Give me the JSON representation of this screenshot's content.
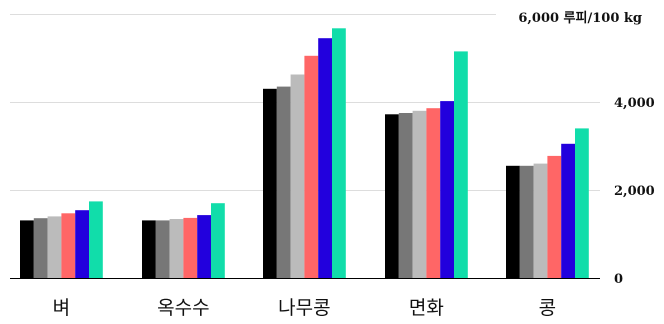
{
  "chart_data": {
    "type": "bar",
    "title": "",
    "xlabel": "",
    "ylabel": "",
    "unit_label": "6,000 루피/100 kg",
    "ylim": [
      0,
      6000
    ],
    "yticks": [
      {
        "value": 0,
        "label": "0"
      },
      {
        "value": 2000,
        "label": "2,000"
      },
      {
        "value": 4000,
        "label": "4,000"
      }
    ],
    "y_axis_side": "right",
    "grid": true,
    "legend": "none",
    "categories": [
      "벼",
      "옥수수",
      "나무콩",
      "면화",
      "콩"
    ],
    "series": [
      {
        "color": "#000000",
        "values": [
          1310,
          1310,
          4300,
          3720,
          2550
        ]
      },
      {
        "color": "#777777",
        "values": [
          1360,
          1310,
          4350,
          3750,
          2550
        ]
      },
      {
        "color": "#bbbbbb",
        "values": [
          1400,
          1340,
          4625,
          3800,
          2600
        ]
      },
      {
        "color": "#ff6666",
        "values": [
          1470,
          1365,
          5050,
          3860,
          2775
        ]
      },
      {
        "color": "#2200dd",
        "values": [
          1540,
          1430,
          5450,
          4020,
          3050
        ]
      },
      {
        "color": "#11ddaa",
        "values": [
          1740,
          1700,
          5675,
          5150,
          3400
        ]
      }
    ]
  }
}
